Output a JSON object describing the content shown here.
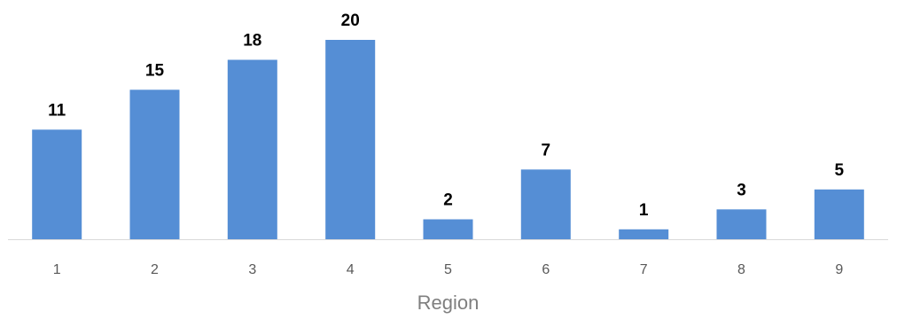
{
  "chart_data": {
    "type": "bar",
    "categories": [
      "1",
      "2",
      "3",
      "4",
      "5",
      "6",
      "7",
      "8",
      "9"
    ],
    "values": [
      11,
      15,
      18,
      20,
      2,
      7,
      1,
      3,
      5
    ],
    "xlabel": "Region",
    "ylabel": "",
    "ylim": [
      0,
      20
    ],
    "grid": false,
    "legend": "none",
    "data_labels": true,
    "colors": {
      "bar": "#558ed5",
      "data_label": "#000000",
      "tick_label": "#595959",
      "axis_title": "#7f7f7f",
      "axis_line": "#d9d9d9"
    }
  }
}
